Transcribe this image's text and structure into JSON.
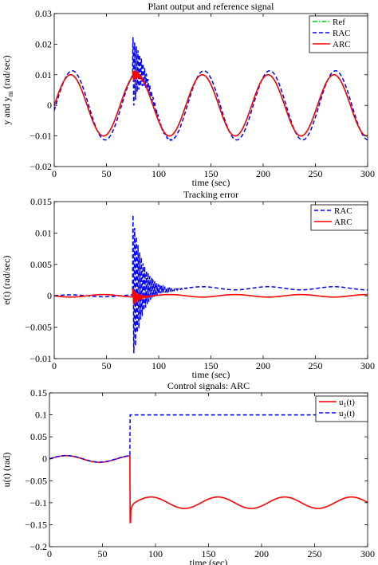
{
  "chart_data": [
    {
      "type": "line",
      "title": "Plant output and reference signal",
      "xlabel": "time (sec)",
      "ylabel": "y and y",
      "ylabel_sub": "m",
      "ylabel_unit": " (rad/sec)",
      "xlim": [
        0,
        300
      ],
      "ylim": [
        -0.02,
        0.03
      ],
      "xticks": [
        0,
        50,
        100,
        150,
        200,
        250,
        300
      ],
      "yticks": [
        -0.02,
        -0.01,
        0,
        0.01,
        0.02,
        0.03
      ],
      "ytick_labels": [
        "−0.02",
        "−0.01",
        "0",
        "0.01",
        "0.02",
        "0.03"
      ],
      "legend_position": "top-right",
      "series": [
        {
          "name": "Ref",
          "color": "#00cc00",
          "dash": "dashdot",
          "model": "sine",
          "amp": 0.01,
          "period": 63,
          "offset": 0
        },
        {
          "name": "RAC",
          "color": "#0000ff",
          "dash": "dashed",
          "model": "sine",
          "amp": 0.0113,
          "period": 63,
          "offset": 0,
          "lag": 1.5,
          "burst_start": 75,
          "burst_peak": 0.013,
          "burst_decay": 8,
          "burst_period": 1.6
        },
        {
          "name": "ARC",
          "color": "#ff0000",
          "dash": "solid",
          "model": "sine",
          "amp": 0.01,
          "period": 63,
          "offset": 0,
          "glitch_start": 75,
          "glitch_peak": 0.002,
          "glitch_decay": 6
        }
      ]
    },
    {
      "type": "line",
      "title": "Tracking error",
      "xlabel": "time (sec)",
      "ylabel": "e(t) (rad/sec)",
      "xlim": [
        0,
        300
      ],
      "ylim": [
        -0.01,
        0.015
      ],
      "xticks": [
        0,
        50,
        100,
        150,
        200,
        250,
        300
      ],
      "yticks": [
        -0.01,
        -0.005,
        0,
        0.005,
        0.01,
        0.015
      ],
      "ytick_labels": [
        "−0.01",
        "−0.005",
        "0",
        "0.005",
        "0.01",
        "0.015"
      ],
      "legend_position": "top-right",
      "series": [
        {
          "name": "RAC",
          "color": "#0000ff",
          "dash": "dashed",
          "model": "error_rac",
          "burst_start": 75,
          "burst_peak": 0.0125,
          "burst_decay": 9,
          "burst_period": 1.6,
          "base_amp": 0.0012,
          "base_period": 63
        },
        {
          "name": "ARC",
          "color": "#ff0000",
          "dash": "solid",
          "model": "error_arc",
          "amp": 0.0002,
          "period": 63,
          "burst_start": 75,
          "burst_peak": 0.0015,
          "burst_decay": 5
        }
      ]
    },
    {
      "type": "line",
      "title": "Control signals: ARC",
      "xlabel": "time (sec)",
      "ylabel": "u(t) (rad)",
      "xlim": [
        0,
        300
      ],
      "ylim": [
        -0.2,
        0.15
      ],
      "xticks": [
        0,
        50,
        100,
        150,
        200,
        250,
        300
      ],
      "yticks": [
        -0.2,
        -0.15,
        -0.1,
        -0.05,
        0,
        0.05,
        0.1,
        0.15
      ],
      "ytick_labels": [
        "−0.2",
        "−0.15",
        "−0.1",
        "−0.05",
        "0",
        "0.05",
        "0.1",
        "0.15"
      ],
      "legend_position": "top-right",
      "series": [
        {
          "name": "u",
          "subscript": "1",
          "suffix": "(t)",
          "color": "#ff0000",
          "dash": "solid",
          "model": "u1",
          "amp": 0.0075,
          "period": 63,
          "switch_at": 76,
          "after_mean": -0.1,
          "after_amp": 0.013,
          "dip": -0.145
        },
        {
          "name": "u",
          "subscript": "2",
          "suffix": "(t)",
          "color": "#0000ff",
          "dash": "dashed",
          "model": "u2",
          "amp": 0.0075,
          "period": 63,
          "switch_at": 76,
          "after_value": 0.1
        }
      ]
    }
  ]
}
